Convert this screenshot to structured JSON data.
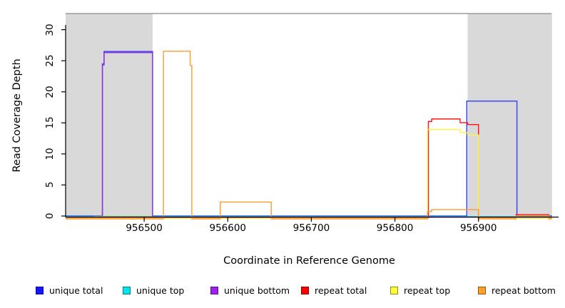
{
  "figure": {
    "kind": "read-coverage-step-plot",
    "background": "#ffffff",
    "plot_border_top_color": "#8a8a8a",
    "axis_color": "#000000"
  },
  "chart_data": {
    "type": "line",
    "subtype": "step-coverage",
    "title": "",
    "xlabel": "Coordinate in Reference Genome",
    "ylabel": "Read Coverage Depth",
    "xlim": [
      956406,
      956988
    ],
    "ylim": [
      0,
      32.6
    ],
    "grid": false,
    "legend_position": "bottom",
    "xticks": [
      956500,
      956600,
      956700,
      956800,
      956900
    ],
    "xtick_labels": [
      "956500",
      "956600",
      "956700",
      "956800",
      "956900"
    ],
    "yticks": [
      0,
      5,
      10,
      15,
      20,
      25,
      30
    ],
    "ytick_labels": [
      "0",
      "5",
      "10",
      "15",
      "20",
      "25",
      "30"
    ],
    "shade_color": "#d9d9d9",
    "shaded_regions": [
      {
        "name": "left-repeat-region",
        "x1": 956406,
        "x2": 956510
      },
      {
        "name": "right-repeat-region",
        "x1": 956887,
        "x2": 956988
      }
    ],
    "series": [
      {
        "name": "unique total",
        "color": "#2e3dff",
        "steps": [
          [
            956406,
            956450,
            0
          ],
          [
            956450,
            956452,
            24.5
          ],
          [
            956452,
            956510,
            26.5
          ],
          [
            956510,
            956886,
            0
          ],
          [
            956886,
            956946,
            18.5
          ],
          [
            956946,
            956988,
            0
          ]
        ]
      },
      {
        "name": "unique top",
        "color": "#00e0e8",
        "steps": [
          [
            956406,
            956988,
            0
          ]
        ]
      },
      {
        "name": "unique bottom",
        "color": "#9330d6",
        "steps": [
          [
            956406,
            956450,
            0
          ],
          [
            956450,
            956452,
            24.5
          ],
          [
            956452,
            956510,
            26.5
          ],
          [
            956510,
            956988,
            0
          ]
        ]
      },
      {
        "name": "repeat total",
        "color": "#ff1414",
        "steps": [
          [
            956406,
            956840,
            0
          ],
          [
            956840,
            956844,
            15.5
          ],
          [
            956844,
            956878,
            15.9
          ],
          [
            956878,
            956887,
            15.3
          ],
          [
            956887,
            956900,
            15.0
          ],
          [
            956900,
            956945,
            0
          ],
          [
            956945,
            956984,
            0.5
          ],
          [
            956984,
            956988,
            0
          ]
        ]
      },
      {
        "name": "repeat top",
        "color": "#fff34d",
        "steps": [
          [
            956406,
            956839,
            0
          ],
          [
            956839,
            956878,
            14.3
          ],
          [
            956878,
            956887,
            13.8
          ],
          [
            956887,
            956900,
            13.4
          ],
          [
            956900,
            956988,
            0
          ]
        ]
      },
      {
        "name": "repeat bottom",
        "color": "#ff9a2e",
        "steps": [
          [
            956406,
            956523,
            0
          ],
          [
            956523,
            956555,
            27
          ],
          [
            956555,
            956557,
            24.7
          ],
          [
            956557,
            956591,
            0
          ],
          [
            956591,
            956652,
            2.7
          ],
          [
            956652,
            956839,
            0
          ],
          [
            956839,
            956844,
            1.2
          ],
          [
            956844,
            956900,
            1.5
          ],
          [
            956900,
            956945,
            0
          ],
          [
            956945,
            956984,
            0.5
          ],
          [
            956984,
            956988,
            0
          ]
        ]
      }
    ],
    "baseline_overlays": [
      {
        "name": "green-baseline-segment",
        "color": "#7cc47c",
        "x1": 956440,
        "x2": 956510,
        "value": 0
      }
    ]
  },
  "legend": {
    "items": [
      {
        "label": "unique total",
        "color": "#1414ff"
      },
      {
        "label": "unique top",
        "color": "#00e5ee"
      },
      {
        "label": "unique bottom",
        "color": "#a020f0"
      },
      {
        "label": "repeat total",
        "color": "#ff0000"
      },
      {
        "label": "repeat top",
        "color": "#ffff33"
      },
      {
        "label": "repeat bottom",
        "color": "#ffa028"
      }
    ]
  }
}
